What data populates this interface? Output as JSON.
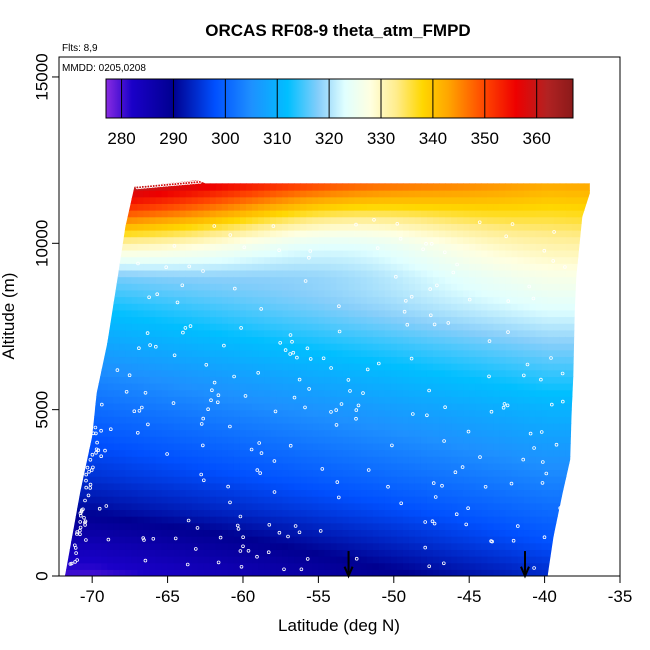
{
  "chart_data": {
    "type": "heatmap",
    "title": "ORCAS RF08-9 theta_atm_FMPD",
    "annotations": [
      "Flts: 8,9",
      "MMDD: 0205,0208"
    ],
    "xlabel": "Latitude (deg N)",
    "ylabel": "Altitude (m)",
    "xlim": [
      -72.2,
      -35
    ],
    "ylim": [
      0,
      15600
    ],
    "x_ticks": [
      -70,
      -65,
      -60,
      -55,
      -50,
      -45,
      -40,
      -35
    ],
    "y_ticks": [
      0,
      5000,
      10000,
      15000
    ],
    "colorbar": {
      "range": [
        277,
        367
      ],
      "ticks": [
        280,
        290,
        300,
        310,
        320,
        330,
        340,
        350,
        360
      ],
      "stops": [
        {
          "value": 277,
          "color": "#8a2be2"
        },
        {
          "value": 282,
          "color": "#1a00c8"
        },
        {
          "value": 290,
          "color": "#000090"
        },
        {
          "value": 298,
          "color": "#0050ff"
        },
        {
          "value": 305,
          "color": "#1e90ff"
        },
        {
          "value": 312,
          "color": "#00bfff"
        },
        {
          "value": 318,
          "color": "#87cefa"
        },
        {
          "value": 323,
          "color": "#e0ffff"
        },
        {
          "value": 328,
          "color": "#ffffe0"
        },
        {
          "value": 333,
          "color": "#ffec8b"
        },
        {
          "value": 338,
          "color": "#ffd700"
        },
        {
          "value": 343,
          "color": "#ffa500"
        },
        {
          "value": 350,
          "color": "#ff4500"
        },
        {
          "value": 356,
          "color": "#ee0000"
        },
        {
          "value": 362,
          "color": "#b22222"
        },
        {
          "value": 367,
          "color": "#8b1a1a"
        }
      ]
    },
    "domain_outline": [
      [
        -71.8,
        0
      ],
      [
        -70.8,
        2500
      ],
      [
        -70.0,
        4200
      ],
      [
        -69.7,
        5500
      ],
      [
        -69.0,
        7000
      ],
      [
        -68.3,
        9000
      ],
      [
        -67.8,
        10500
      ],
      [
        -67.2,
        11700
      ],
      [
        -63.0,
        11900
      ],
      [
        -62.5,
        11800
      ],
      [
        -37.0,
        11800
      ],
      [
        -37.0,
        11500
      ],
      [
        -37.5,
        10800
      ],
      [
        -37.9,
        9000
      ],
      [
        -38.0,
        8000
      ],
      [
        -38.1,
        6000
      ],
      [
        -38.2,
        5000
      ],
      [
        -38.3,
        3500
      ],
      [
        -38.8,
        2500
      ],
      [
        -39.4,
        1200
      ],
      [
        -39.8,
        0
      ]
    ],
    "theta_profile": {
      "altitude_m": [
        0,
        1000,
        2000,
        3000,
        4000,
        5000,
        6000,
        7000,
        8000,
        9000,
        10000,
        11000,
        11800
      ],
      "south_lat": -70,
      "south_values_K": [
        280,
        285,
        291,
        295,
        298,
        301,
        304,
        308,
        312,
        317,
        332,
        352,
        364
      ],
      "north_lat": -40,
      "north_values_K": [
        294,
        298,
        301,
        304,
        307,
        310,
        314,
        318,
        323,
        327,
        332,
        338,
        343
      ]
    },
    "arrows_lat": [
      -53,
      -41.3
    ]
  }
}
